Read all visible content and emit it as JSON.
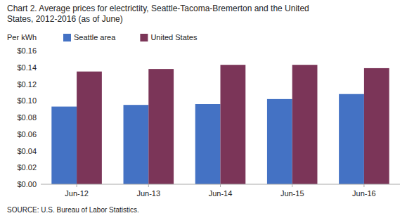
{
  "chart_data": {
    "type": "bar",
    "title": "Chart 2. Average prices for electrictity, Seattle-Tacoma-Bremerton and the United",
    "subtitle": "States, 2012-2016  (as of June)",
    "ylabel": "Per kWh",
    "annotations": [
      "SOURCE: U.S. Bureau of Labor Statistics."
    ],
    "categories": [
      "Jun-12",
      "Jun-13",
      "Jun-14",
      "Jun-15",
      "Jun-16"
    ],
    "series": [
      {
        "name": "Seattle area",
        "color": "#4472C4",
        "values": [
          0.093,
          0.095,
          0.096,
          0.102,
          0.108
        ]
      },
      {
        "name": "United States",
        "color": "#7B3558",
        "values": [
          0.135,
          0.138,
          0.143,
          0.143,
          0.139
        ]
      }
    ],
    "ylim": [
      0,
      0.16
    ],
    "yticks": [
      {
        "value": 0,
        "label": "$0.00"
      },
      {
        "value": 0.02,
        "label": "$0.02"
      },
      {
        "value": 0.04,
        "label": "$0.04"
      },
      {
        "value": 0.06,
        "label": "$0.06"
      },
      {
        "value": 0.08,
        "label": "$0.08"
      },
      {
        "value": 0.1,
        "label": "$0.10"
      },
      {
        "value": 0.12,
        "label": "$0.12"
      },
      {
        "value": 0.14,
        "label": "$0.14"
      },
      {
        "value": 0.16,
        "label": "$0.16"
      }
    ],
    "grid": false,
    "legend": "top"
  }
}
